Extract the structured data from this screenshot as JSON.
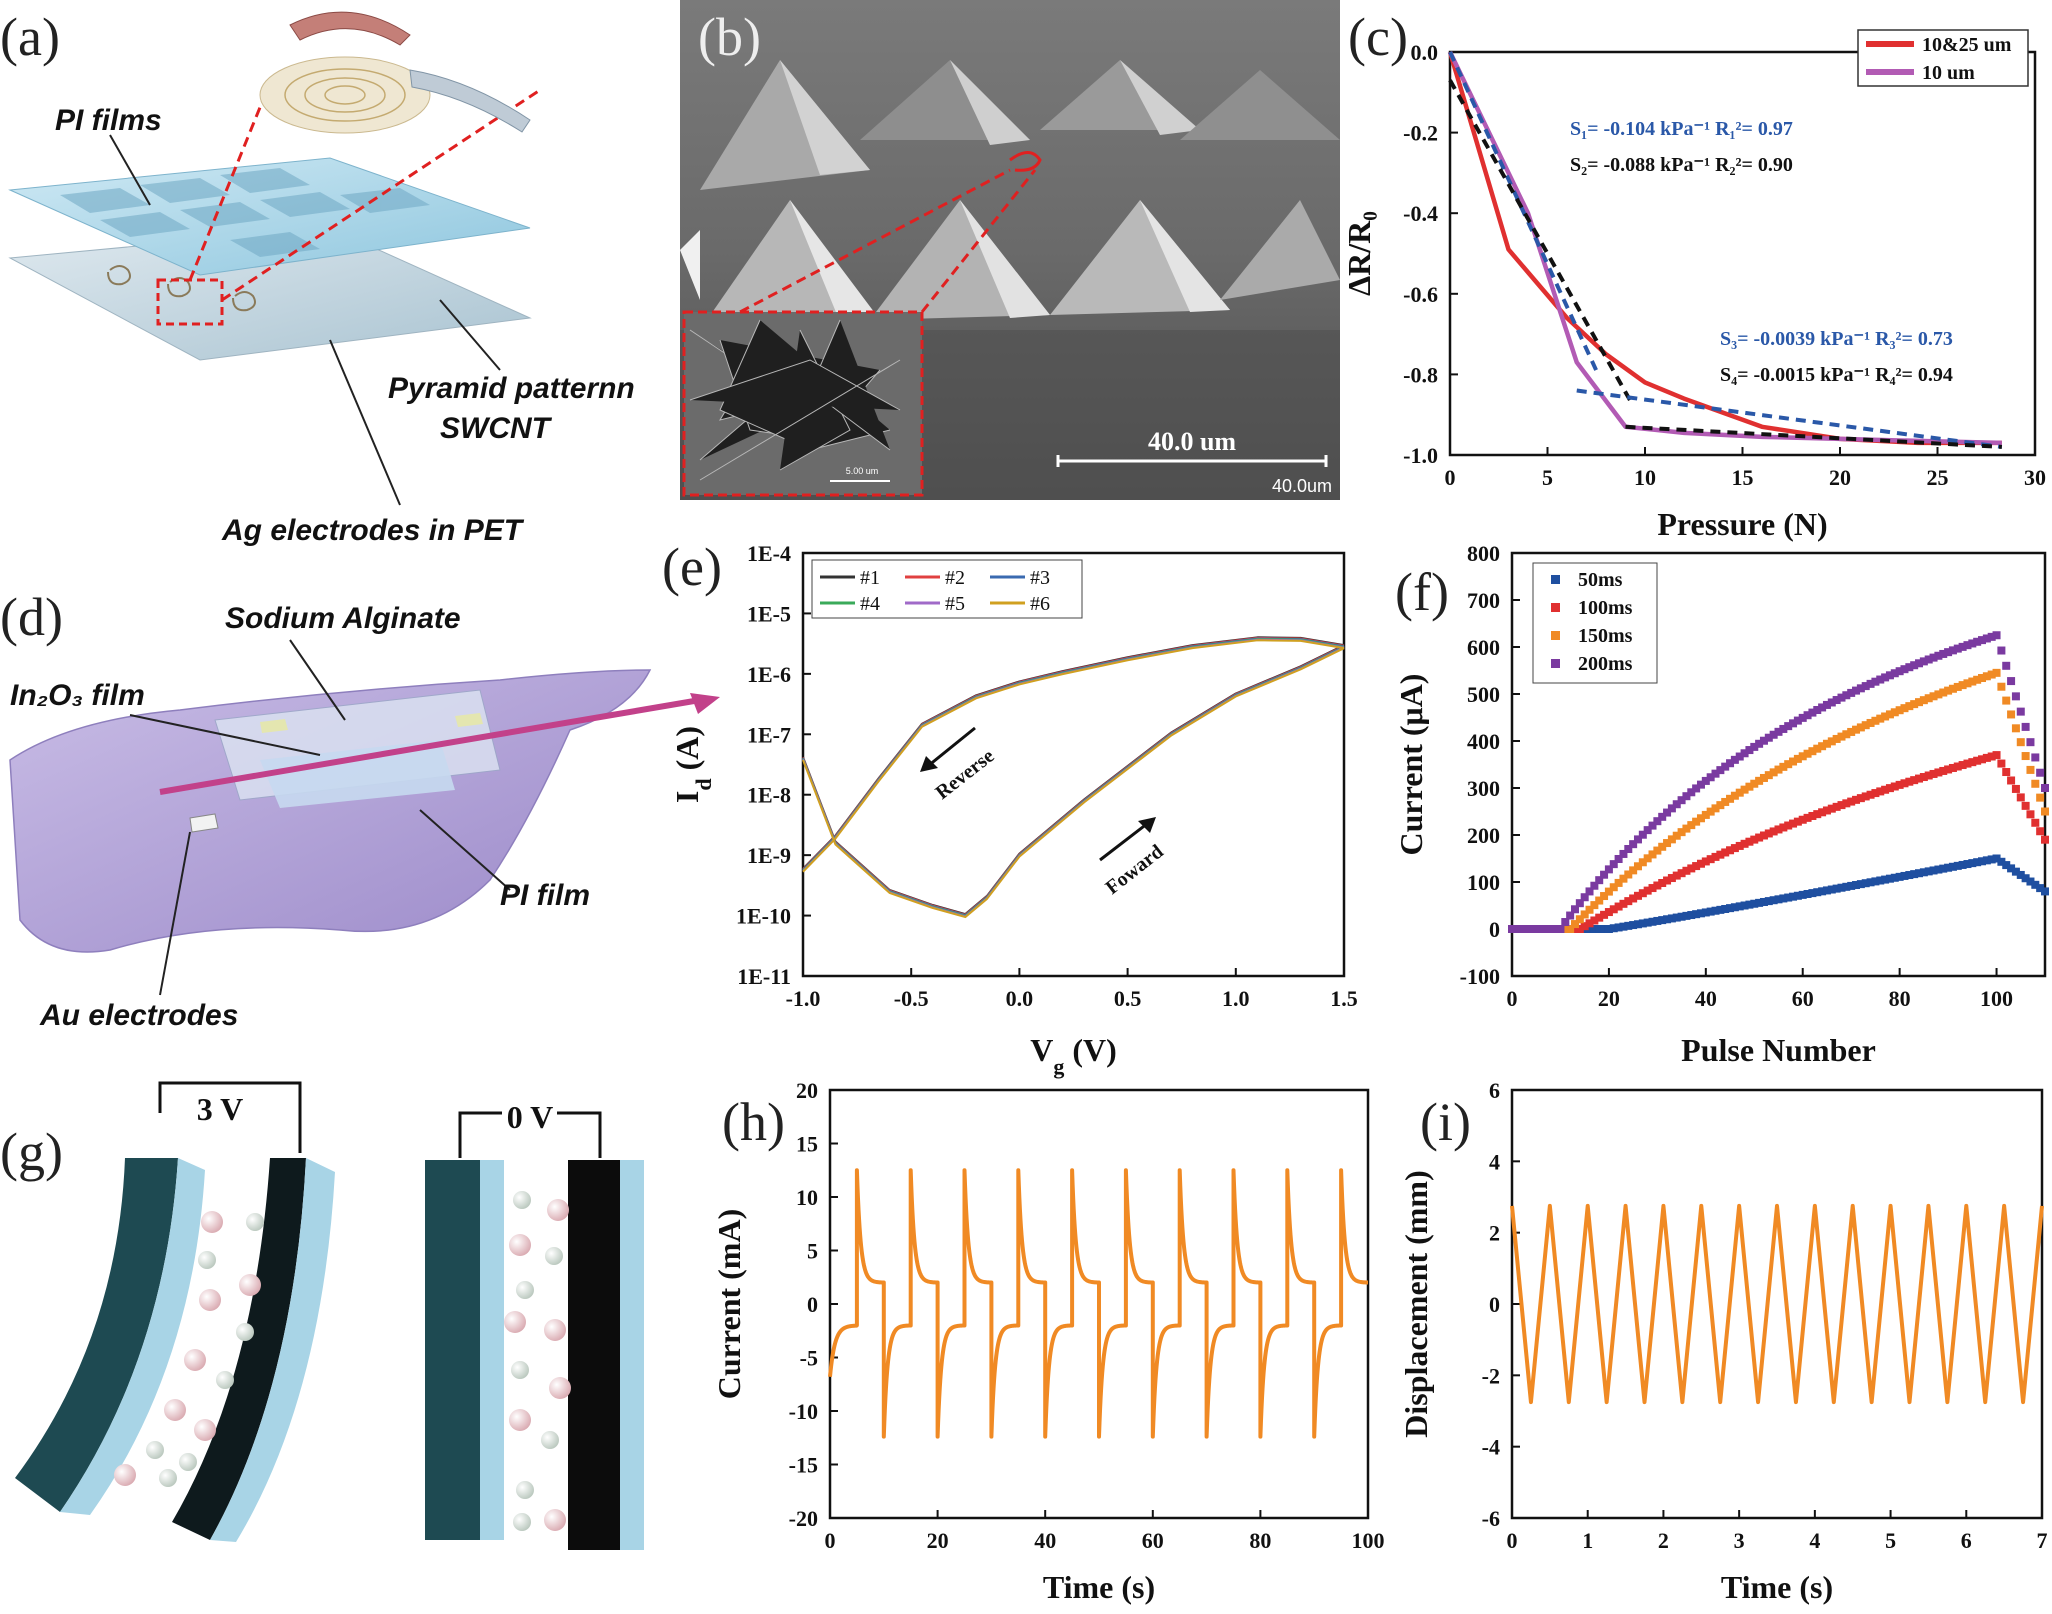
{
  "panels": {
    "a": {
      "letter": "(a)",
      "labels": {
        "pi_films": "PI films",
        "pyramid_line1": "Pyramid patternn",
        "pyramid_line2": "SWCNT",
        "ag_electrodes": "Ag electrodes in PET"
      }
    },
    "b": {
      "letter": "(b)",
      "scale_label": "40.0 um",
      "scale_corner": "40.0um",
      "inset_scale": "5.00 um"
    },
    "c": {
      "letter": "(c)",
      "legend": [
        "10&25 um",
        "10 um"
      ],
      "annotations": {
        "s1": "S₁= -0.104 kPa⁻¹  R₁²= 0.97",
        "s2": "S₂= -0.088 kPa⁻¹  R₂²= 0.90",
        "s3": "S₃= -0.0039 kPa⁻¹  R₃²= 0.73",
        "s4": "S₄= -0.0015 kPa⁻¹  R₄²= 0.94"
      }
    },
    "d": {
      "letter": "(d)",
      "labels": {
        "sodium": "Sodium Alginate",
        "in2o3": "In₂O₃ film",
        "pi_film": "PI film",
        "au": "Au electrodes"
      }
    },
    "e": {
      "letter": "(e)",
      "legend": [
        "#1",
        "#2",
        "#3",
        "#4",
        "#5",
        "#6"
      ],
      "arrows": {
        "reverse": "Reverse",
        "forward": "Foward"
      }
    },
    "f": {
      "letter": "(f)",
      "legend": [
        "50ms",
        "100ms",
        "150ms",
        "200ms"
      ]
    },
    "g": {
      "letter": "(g)",
      "voltage_left": "3 V",
      "voltage_right": "0 V"
    },
    "h": {
      "letter": "(h)"
    },
    "i": {
      "letter": "(i)"
    }
  },
  "colors": {
    "red": "#e03030",
    "purple": "#b25bb4",
    "blue_dash": "#2a58a8",
    "black": "#111111",
    "orange": "#f08a24",
    "blue": "#1f4fa0",
    "pi_blue": "#a8d6ea",
    "pi_purple": "#b6a6d8",
    "electrode_dark": "#1e4a52",
    "electrode_light": "#a8d4e6"
  },
  "chart_data": [
    {
      "id": "c",
      "type": "line",
      "xlabel": "Pressure (N)",
      "ylabel": "ΔR/R₀",
      "xlim": [
        0,
        30
      ],
      "ylim": [
        -1.0,
        0.0
      ],
      "xticks": [
        "0",
        "5",
        "10",
        "15",
        "20",
        "25",
        "30"
      ],
      "yticks": [
        "0.0",
        "-0.2",
        "-0.4",
        "-0.6",
        "-0.8",
        "-1.0"
      ],
      "series": [
        {
          "name": "10&25 um",
          "color": "#e03030",
          "x": [
            0,
            3,
            6,
            8,
            10,
            12,
            16,
            20,
            24,
            28.3
          ],
          "y": [
            0.0,
            -0.49,
            -0.66,
            -0.75,
            -0.82,
            -0.86,
            -0.93,
            -0.96,
            -0.97,
            -0.97
          ]
        },
        {
          "name": "10 um",
          "color": "#b25bb4",
          "x": [
            0,
            2,
            4,
            6.5,
            9,
            12,
            16,
            20,
            24,
            28.3
          ],
          "y": [
            0.0,
            -0.2,
            -0.4,
            -0.77,
            -0.93,
            -0.945,
            -0.955,
            -0.96,
            -0.965,
            -0.97
          ]
        },
        {
          "name": "fit S1",
          "color": "#2a58a8",
          "dash": true,
          "x": [
            0,
            7.5
          ],
          "y": [
            0.0,
            -0.79
          ]
        },
        {
          "name": "fit S2",
          "color": "#111111",
          "dash": true,
          "x": [
            0,
            9.3
          ],
          "y": [
            -0.07,
            -0.87
          ]
        },
        {
          "name": "fit S3",
          "color": "#2a58a8",
          "dash": true,
          "x": [
            6.5,
            28.3
          ],
          "y": [
            -0.84,
            -0.98
          ]
        },
        {
          "name": "fit S4",
          "color": "#111111",
          "dash": true,
          "x": [
            9,
            28.3
          ],
          "y": [
            -0.93,
            -0.98
          ]
        }
      ]
    },
    {
      "id": "e",
      "type": "line",
      "xlabel": "V_g (V)",
      "ylabel": "I_d (A)",
      "xlim": [
        -1.0,
        1.5
      ],
      "ylim_log10": [
        -11,
        -4
      ],
      "xticks": [
        "-1.0",
        "-0.5",
        "0.0",
        "0.5",
        "1.0",
        "1.5"
      ],
      "yticks": [
        "1E-4",
        "1E-5",
        "1E-6",
        "1E-7",
        "1E-8",
        "1E-9",
        "1E-10",
        "1E-11"
      ],
      "series": [
        {
          "name": "forward",
          "x": [
            -1.0,
            -0.85,
            -0.6,
            -0.4,
            -0.25,
            -0.15,
            0.0,
            0.3,
            0.7,
            1.0,
            1.3,
            1.5
          ],
          "log10_y": [
            -7.4,
            -8.8,
            -9.6,
            -9.85,
            -10.0,
            -9.7,
            -9.0,
            -8.1,
            -7.0,
            -6.35,
            -5.9,
            -5.55
          ]
        },
        {
          "name": "reverse",
          "x": [
            1.5,
            1.3,
            1.1,
            0.8,
            0.5,
            0.2,
            0.0,
            -0.2,
            -0.45,
            -0.65,
            -0.85,
            -1.0
          ],
          "log10_y": [
            -5.55,
            -5.43,
            -5.42,
            -5.55,
            -5.75,
            -5.98,
            -6.15,
            -6.38,
            -6.85,
            -7.75,
            -8.7,
            -9.25
          ]
        }
      ]
    },
    {
      "id": "f",
      "type": "scatter",
      "xlabel": "Pulse Number",
      "ylabel": "Current (μA)",
      "xlim": [
        0,
        110
      ],
      "ylim": [
        -100,
        800
      ],
      "xticks": [
        "0",
        "20",
        "40",
        "60",
        "80",
        "100"
      ],
      "yticks": [
        "-100",
        "0",
        "100",
        "200",
        "300",
        "400",
        "500",
        "600",
        "700",
        "800"
      ],
      "pulses": 100,
      "decay_to": 110,
      "series": [
        {
          "name": "50ms",
          "color": "#1f4fa0",
          "start": 20,
          "peak": 150,
          "end": 80,
          "shape": 2.2
        },
        {
          "name": "100ms",
          "color": "#e03030",
          "start": 14,
          "peak": 370,
          "end": 190,
          "shape": 1.3
        },
        {
          "name": "150ms",
          "color": "#f08a24",
          "start": 12,
          "peak": 545,
          "end": 250,
          "shape": 1.0
        },
        {
          "name": "200ms",
          "color": "#7a3aa0",
          "start": 10,
          "peak": 625,
          "end": 300,
          "shape": 0.7
        }
      ]
    },
    {
      "id": "h",
      "type": "line",
      "xlabel": "Time (s)",
      "ylabel": "Current (mA)",
      "xlim": [
        0,
        100
      ],
      "ylim": [
        -20,
        20
      ],
      "xticks": [
        "0",
        "20",
        "40",
        "60",
        "80",
        "100"
      ],
      "yticks": [
        "20",
        "15",
        "10",
        "5",
        "0",
        "-5",
        "-10",
        "-15",
        "-20"
      ],
      "period": 10,
      "peak_positive": 12.5,
      "peak_negative": -12.4,
      "plateau": 2.0
    },
    {
      "id": "i",
      "type": "line",
      "xlabel": "Time (s)",
      "ylabel": "Displacement (mm)",
      "xlim": [
        0,
        7
      ],
      "ylim": [
        -6,
        6
      ],
      "xticks": [
        "0",
        "1",
        "2",
        "3",
        "4",
        "5",
        "6",
        "7"
      ],
      "yticks": [
        "6",
        "4",
        "2",
        "0",
        "-2",
        "-4",
        "-6"
      ],
      "period": 0.5,
      "amplitude": 2.75
    }
  ]
}
